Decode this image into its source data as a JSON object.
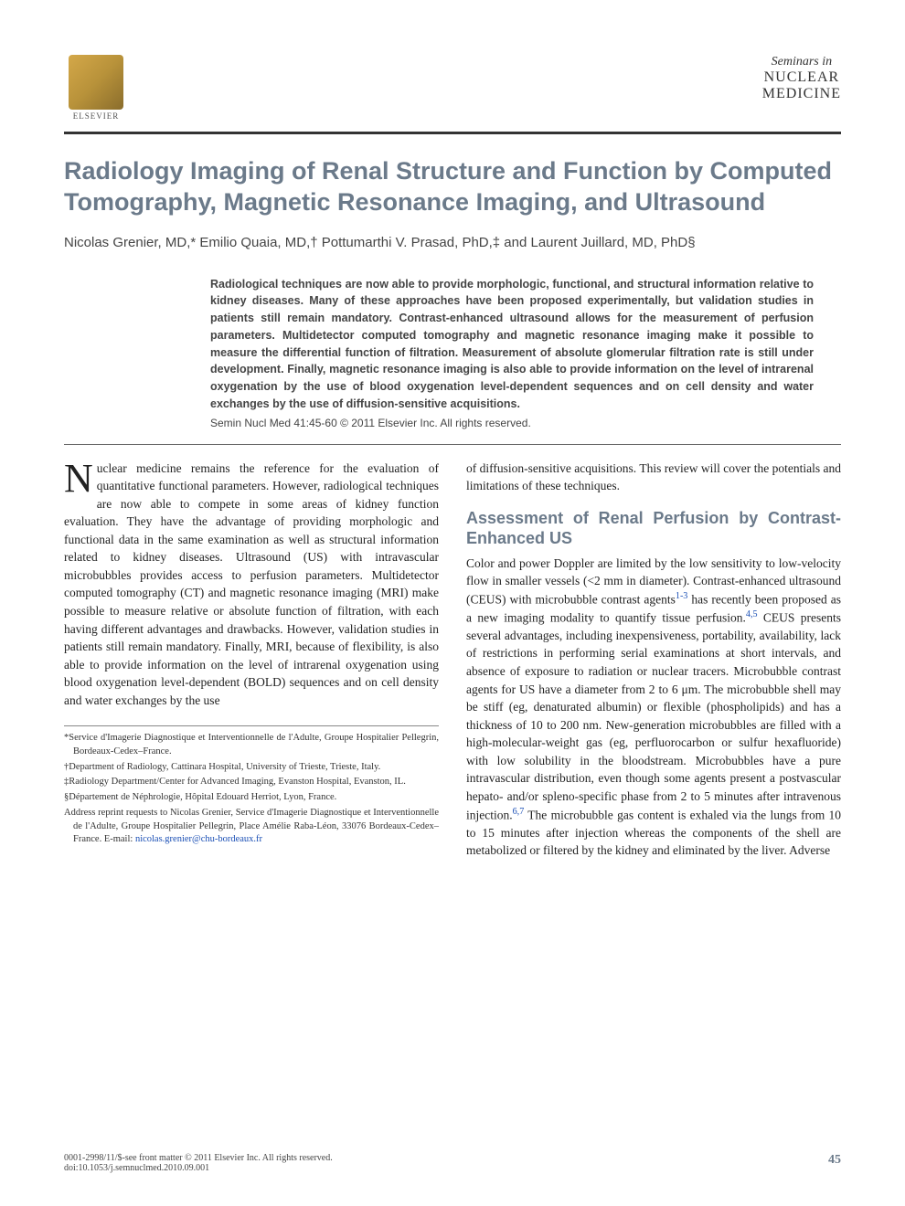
{
  "header": {
    "publisher": "ELSEVIER",
    "journal_line1": "Seminars in",
    "journal_line2": "NUCLEAR",
    "journal_line3": "MEDICINE"
  },
  "title": "Radiology Imaging of Renal Structure and Function by Computed Tomography, Magnetic Resonance Imaging, and Ultrasound",
  "authors": "Nicolas Grenier, MD,* Emilio Quaia, MD,† Pottumarthi V. Prasad, PhD,‡ and Laurent Juillard, MD, PhD§",
  "abstract": "Radiological techniques are now able to provide morphologic, functional, and structural information relative to kidney diseases. Many of these approaches have been proposed experimentally, but validation studies in patients still remain mandatory. Contrast-enhanced ultrasound allows for the measurement of perfusion parameters. Multidetector computed tomography and magnetic resonance imaging make it possible to measure the differential function of filtration. Measurement of absolute glomerular filtration rate is still under development. Finally, magnetic resonance imaging is also able to provide information on the level of intrarenal oxygenation by the use of blood oxygenation level-dependent sequences and on cell density and water exchanges by the use of diffusion-sensitive acquisitions.",
  "citation": "Semin Nucl Med 41:45-60 © 2011 Elsevier Inc. All rights reserved.",
  "body": {
    "col1_dropcap": "N",
    "col1_p1": "uclear medicine remains the reference for the evaluation of quantitative functional parameters. However, radiological techniques are now able to compete in some areas of kidney function evaluation. They have the advantage of providing morphologic and functional data in the same examination as well as structural information related to kidney diseases. Ultrasound (US) with intravascular microbubbles provides access to perfusion parameters. Multidetector computed tomography (CT) and magnetic resonance imaging (MRI) make possible to measure relative or absolute function of filtration, with each having different advantages and drawbacks. However, validation studies in patients still remain mandatory. Finally, MRI, because of flexibility, is also able to provide information on the level of intrarenal oxygenation using blood oxygenation level-dependent (BOLD) sequences and on cell density and water exchanges by the use",
    "col2_p1": "of diffusion-sensitive acquisitions. This review will cover the potentials and limitations of these techniques.",
    "section_heading": "Assessment of Renal Perfusion by Contrast-Enhanced US",
    "col2_p2a": "Color and power Doppler are limited by the low sensitivity to low-velocity flow in smaller vessels (<2 mm in diameter). Contrast-enhanced ultrasound (CEUS) with microbubble contrast agents",
    "col2_ref1": "1-3",
    "col2_p2b": " has recently been proposed as a new imaging modality to quantify tissue perfusion.",
    "col2_ref2": "4,5",
    "col2_p2c": " CEUS presents several advantages, including inexpensiveness, portability, availability, lack of restrictions in performing serial examinations at short intervals, and absence of exposure to radiation or nuclear tracers. Microbubble contrast agents for US have a diameter from 2 to 6 μm. The microbubble shell may be stiff (eg, denaturated albumin) or flexible (phospholipids) and has a thickness of 10 to 200 nm. New-generation microbubbles are filled with a high-molecular-weight gas (eg, perfluorocarbon or sulfur hexafluoride) with low solubility in the bloodstream. Microbubbles have a pure intravascular distribution, even though some agents present a postvascular hepato- and/or spleno-specific phase from 2 to 5 minutes after intravenous injection.",
    "col2_ref3": "6,7",
    "col2_p2d": " The microbubble gas content is exhaled via the lungs from 10 to 15 minutes after injection whereas the components of the shell are metabolized or filtered by the kidney and eliminated by the liver. Adverse"
  },
  "footnotes": {
    "f1": "*Service d'Imagerie Diagnostique et Interventionnelle de l'Adulte, Groupe Hospitalier Pellegrin, Bordeaux-Cedex–France.",
    "f2": "†Department of Radiology, Cattinara Hospital, University of Trieste, Trieste, Italy.",
    "f3": "‡Radiology Department/Center for Advanced Imaging, Evanston Hospital, Evanston, IL.",
    "f4": "§Département de Néphrologie, Hôpital Edouard Herriot, Lyon, France.",
    "f5a": "Address reprint requests to Nicolas Grenier, Service d'Imagerie Diagnostique et Interventionnelle de l'Adulte, Groupe Hospitalier Pellegrin, Place Amélie Raba-Léon, 33076 Bordeaux-Cedex–France. E-mail: ",
    "email": "nicolas.grenier@chu-bordeaux.fr"
  },
  "footer": {
    "left1": "0001-2998/11/$-see front matter © 2011 Elsevier Inc. All rights reserved.",
    "left2": "doi:10.1053/j.semnuclmed.2010.09.001",
    "pagenum": "45"
  },
  "colors": {
    "heading_color": "#6b7a8a",
    "text_color": "#333333",
    "link_color": "#1a4fb5",
    "rule_color": "#333333",
    "background": "#ffffff"
  },
  "typography": {
    "title_font": "Arial",
    "title_size_pt": 27,
    "body_font": "Georgia",
    "body_size_pt": 13.5,
    "abstract_size_pt": 12.5,
    "footnote_size_pt": 10.5
  }
}
